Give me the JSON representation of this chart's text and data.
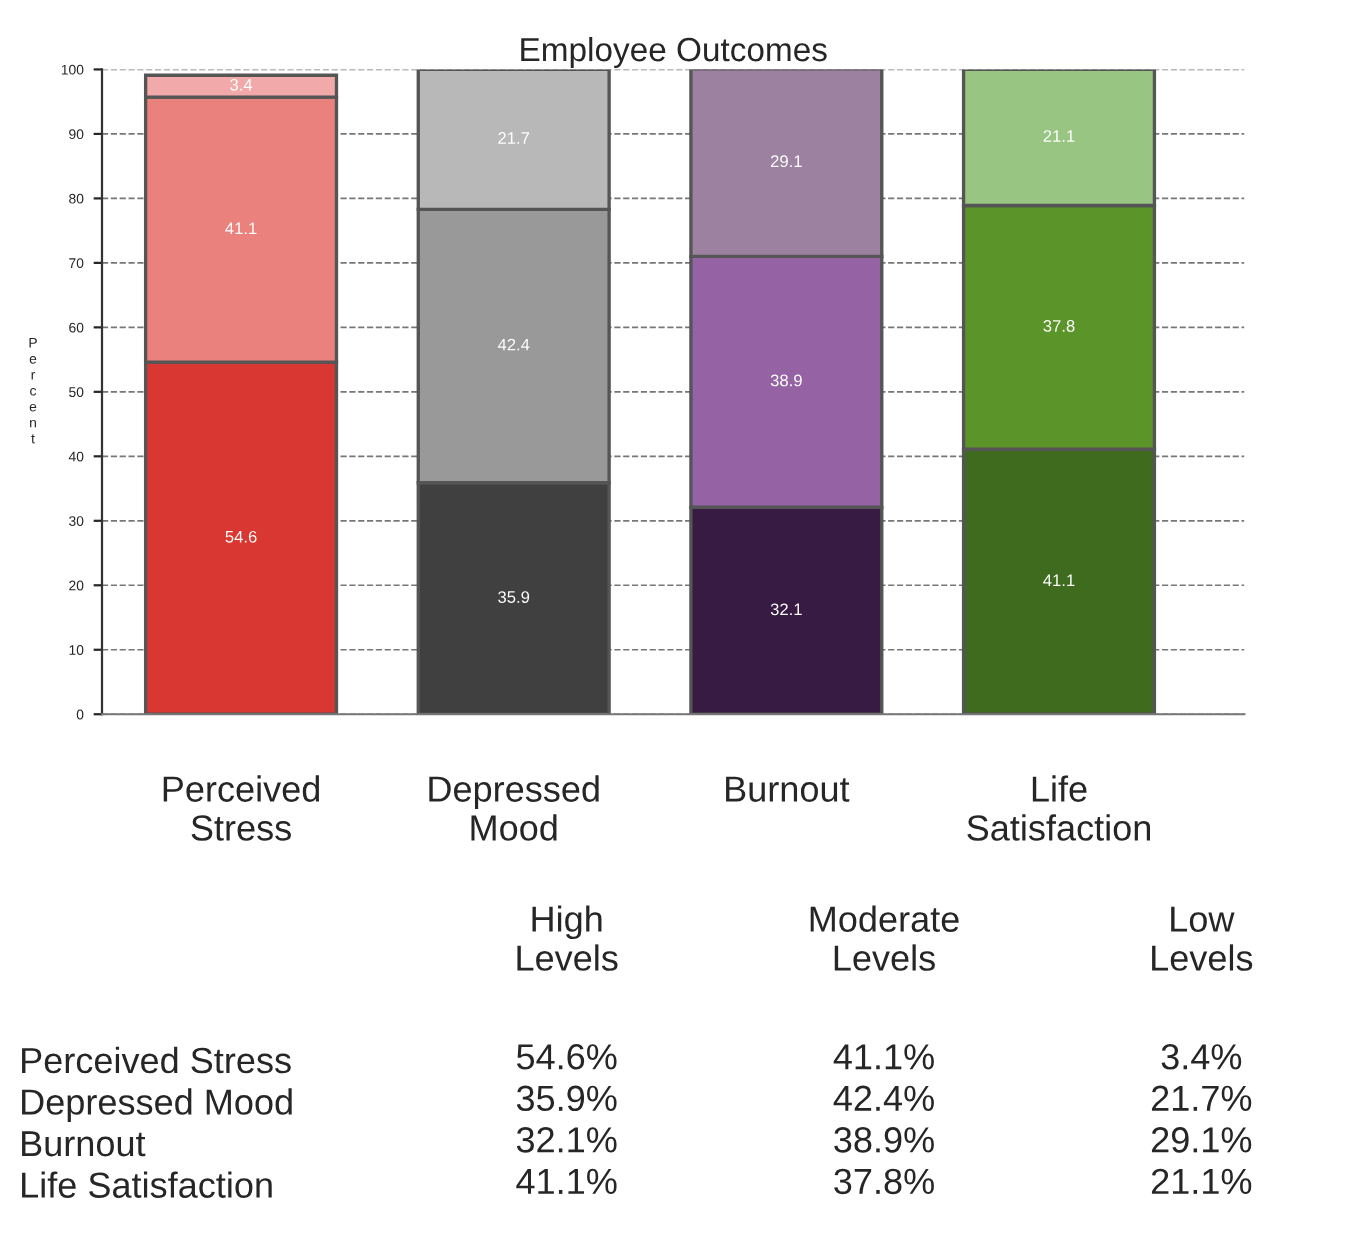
{
  "chart_data": [
    {
      "type": "bar",
      "title": "Employee Outcomes",
      "ylabel": "Percent",
      "categories": [
        "Perceived\nStress",
        "Depressed\nMood",
        "Burnout",
        "Life\nSatisfaction"
      ],
      "stacked": true,
      "data_labels": true,
      "grid": "y",
      "legend": false,
      "ylim": [
        0,
        100
      ],
      "yticks": [
        0,
        10,
        20,
        30,
        40,
        50,
        60,
        70,
        80,
        90,
        100
      ],
      "series": [
        {
          "colors": [
            "#d93731",
            "#404040",
            "#371b42",
            "#3e6b1e"
          ],
          "values": [
            54.6,
            35.9,
            32.1,
            41.1
          ]
        },
        {
          "colors": [
            "#eb817d",
            "#999999",
            "#9562a3",
            "#5b9529"
          ],
          "values": [
            41.1,
            42.4,
            38.9,
            37.8
          ]
        },
        {
          "colors": [
            "#f2a9a9",
            "#b8b8b8",
            "#9c82a0",
            "#99c583"
          ],
          "values": [
            3.4,
            21.7,
            29.1,
            21.1
          ]
        }
      ]
    },
    {
      "type": "other",
      "categories": [
        "High\nLevels",
        "Moderate\nLevels",
        "Low\nLevels"
      ],
      "y_categories": [
        "Perceived Stress",
        "Depressed Mood",
        "Burnout",
        "Life Satisfaction"
      ],
      "cell_labels": [
        [
          "54.6%",
          "41.1%",
          "3.4%"
        ],
        [
          "35.9%",
          "42.4%",
          "21.7%"
        ],
        [
          "32.1%",
          "38.9%",
          "29.1%"
        ],
        [
          "41.1%",
          "37.8%",
          "21.1%"
        ]
      ]
    }
  ]
}
